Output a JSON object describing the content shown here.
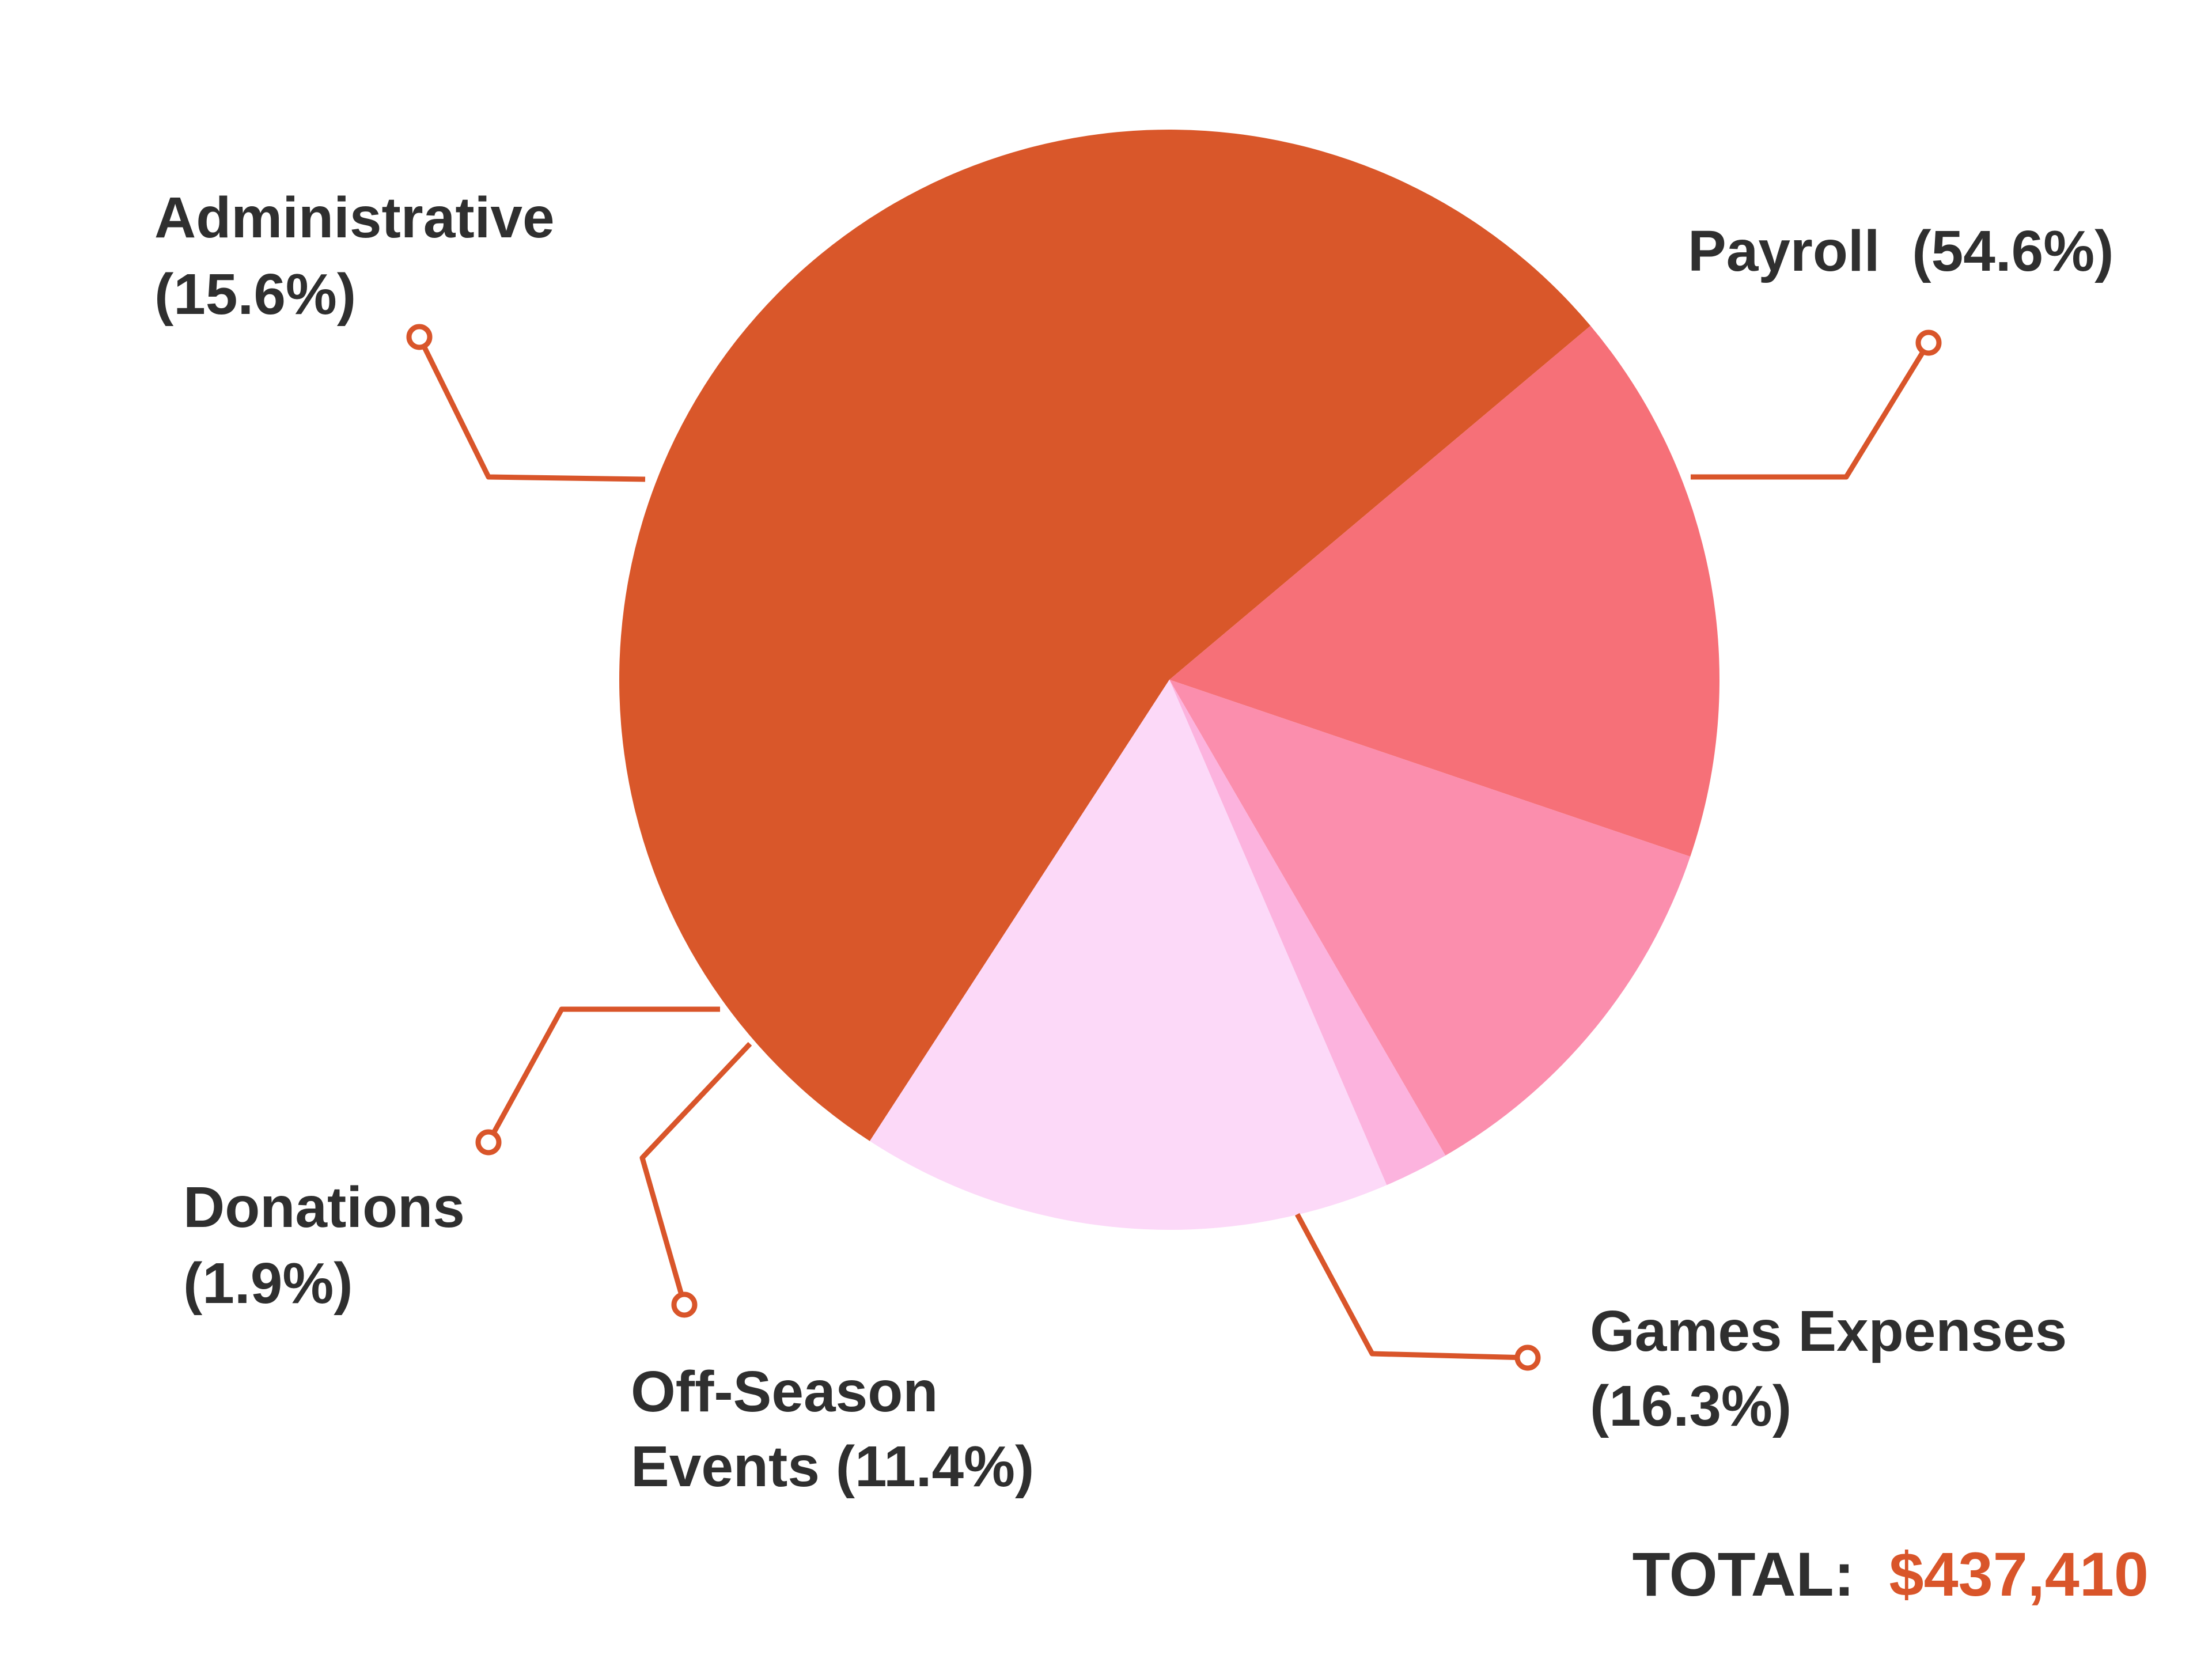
{
  "chart_data": {
    "type": "pie",
    "slices": [
      {
        "label": "Payroll",
        "percent_text": "(54.6%)",
        "value": 54.6,
        "color": "#d9572a"
      },
      {
        "label": "Games Expenses",
        "percent_text": "(16.3%)",
        "value": 16.3,
        "color": "#f67078"
      },
      {
        "label": "Off-Season Events",
        "percent_text": "(11.4%)",
        "value": 11.4,
        "color": "#fb8ead"
      },
      {
        "label": "Donations",
        "percent_text": "(1.9%)",
        "value": 1.9,
        "color": "#fcb3de"
      },
      {
        "label": "Administrative",
        "percent_text": "(15.6%)",
        "value": 15.6,
        "color": "#fcd9f8"
      }
    ],
    "start_angle_deg": 123,
    "direction": "clockwise",
    "leader_line_color": "#d9552a"
  },
  "total": {
    "label": "TOTAL:",
    "value": "$437,410",
    "value_color": "#d9552a"
  }
}
